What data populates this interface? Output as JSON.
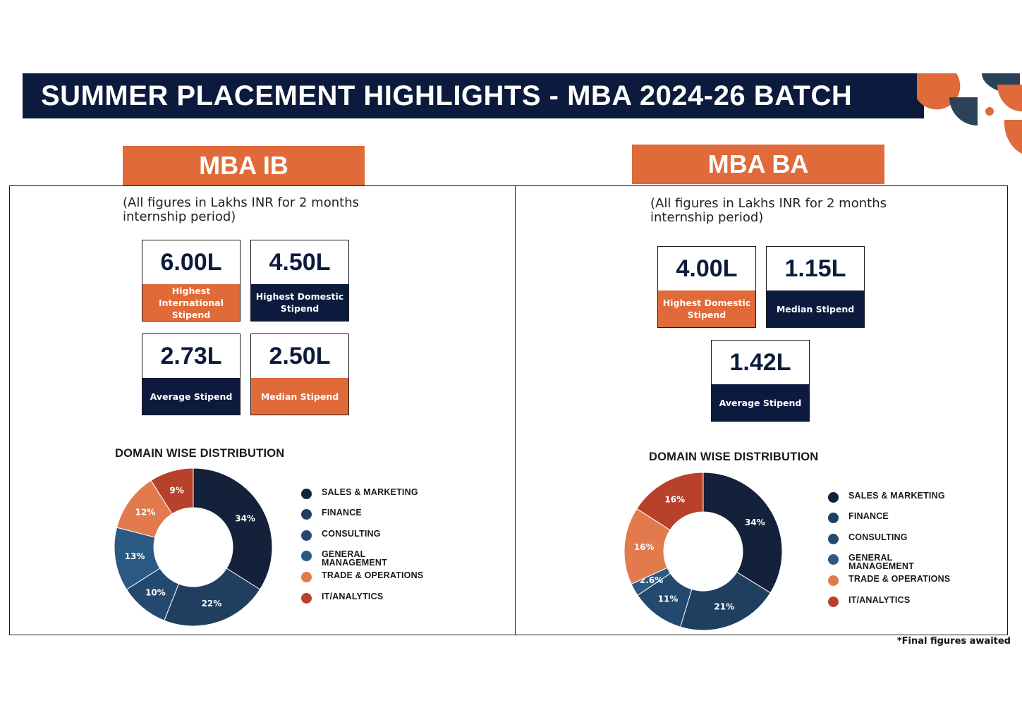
{
  "title": "SUMMER PLACEMENT HIGHLIGHTS - MBA 2024-26 BATCH",
  "footnote": "*Final figures awaited",
  "colors": {
    "navy": "#0c1a3d",
    "orange": "#e06a39"
  },
  "left": {
    "tab": "MBA IB",
    "note": "(All figures in Lakhs INR for 2 months internship period)",
    "stats": [
      {
        "value": "6.00L",
        "label": "Highest International Stipend",
        "color": "orange"
      },
      {
        "value": "4.50L",
        "label": "Highest Domestic Stipend",
        "color": "navy"
      },
      {
        "value": "2.73L",
        "label": "Average Stipend",
        "color": "navy"
      },
      {
        "value": "2.50L",
        "label": "Median Stipend",
        "color": "orange"
      }
    ],
    "dist_title": "DOMAIN WISE DISTRIBUTION"
  },
  "right": {
    "tab": "MBA BA",
    "note": "(All figures in Lakhs INR for 2 months internship period)",
    "stats": [
      {
        "value": "4.00L",
        "label": "Highest Domestic Stipend",
        "color": "orange"
      },
      {
        "value": "1.15L",
        "label": "Median Stipend",
        "color": "navy"
      },
      {
        "value": "1.42L",
        "label": "Average Stipend",
        "color": "navy"
      }
    ],
    "dist_title": "DOMAIN WISE DISTRIBUTION"
  },
  "chart_data": [
    {
      "type": "pie",
      "title": "DOMAIN WISE DISTRIBUTION",
      "legend": "right",
      "categories": [
        "SALES & MARKETING",
        "FINANCE",
        "CONSULTING",
        "GENERAL MANAGEMENT",
        "TRADE & OPERATIONS",
        "IT/ANALYTICS"
      ],
      "values": [
        34,
        22,
        10,
        13,
        12,
        9
      ],
      "data_labels": [
        "34%",
        "22%",
        "10%",
        "13%",
        "12%",
        "9%"
      ],
      "colors": [
        "#13213a",
        "#203f5e",
        "#24496f",
        "#2a5984",
        "#e27a4e",
        "#b8412b"
      ]
    },
    {
      "type": "pie",
      "title": "DOMAIN WISE DISTRIBUTION",
      "legend": "right",
      "categories": [
        "SALES & MARKETING",
        "FINANCE",
        "CONSULTING",
        "GENERAL MANAGEMENT",
        "TRADE & OPERATIONS",
        "IT/ANALYTICS"
      ],
      "values": [
        34,
        21,
        11,
        2.6,
        16,
        16
      ],
      "data_labels": [
        "34%",
        "21%",
        "11%",
        "2.6%",
        "16%",
        "16%"
      ],
      "colors": [
        "#13213a",
        "#203f5e",
        "#24496f",
        "#2a5984",
        "#e27a4e",
        "#b8412b"
      ]
    }
  ]
}
